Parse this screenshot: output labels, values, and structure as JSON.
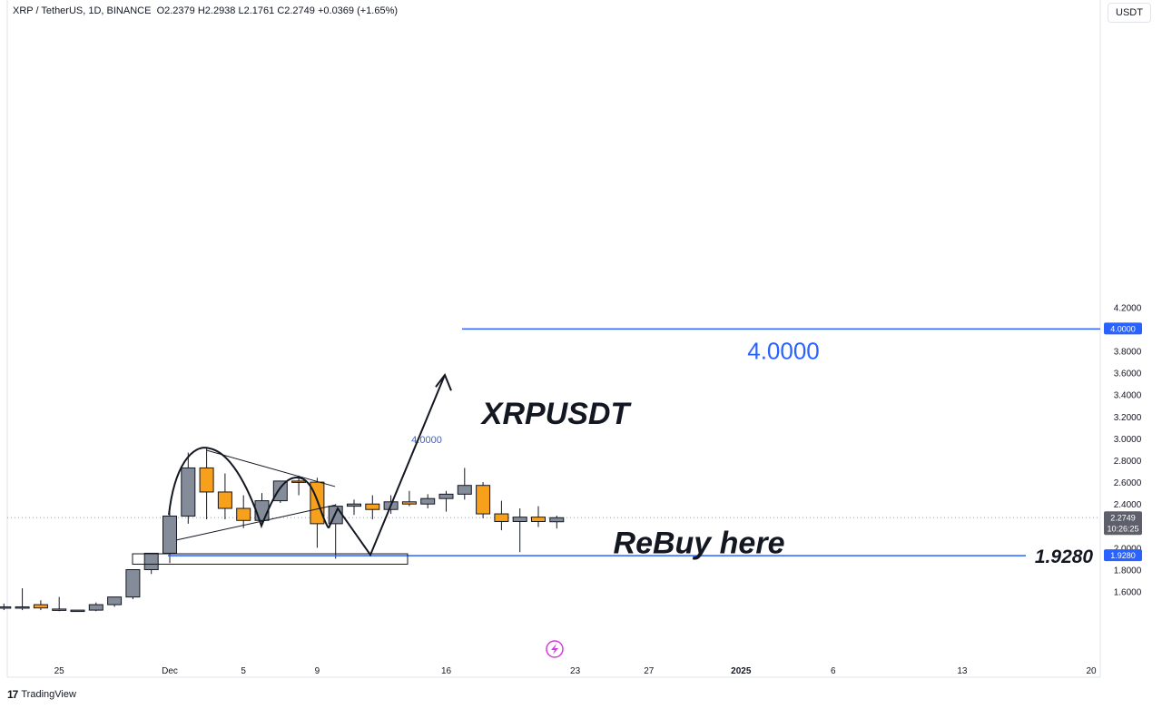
{
  "header": {
    "symbol": "XRP / TetherUS, 1D, BINANCE",
    "open": "O2.2379",
    "high": "H2.2938",
    "low": "L2.1761",
    "close": "C2.2749",
    "change": "+0.0369 (+1.65%)"
  },
  "currency": "USDT",
  "brand": {
    "logo": "17",
    "name": "TradingView"
  },
  "price_tag": {
    "value": "2.2749",
    "countdown": "10:26:25"
  },
  "annotations": {
    "title": "XRPUSDT",
    "rebuy": "ReBuy here",
    "target_big": "4.0000",
    "target_small": "4.0000",
    "support_label": "1.9280"
  },
  "colors": {
    "up": "#858c99",
    "down": "#f7a01c",
    "line": "#2962ff",
    "text": "#131722"
  },
  "chart_data": {
    "type": "candlestick",
    "ylim": [
      1.42,
      4.36
    ],
    "y_ticks": [
      1.6,
      1.8,
      2.0,
      2.2,
      2.4,
      2.6,
      2.8,
      3.0,
      3.2,
      3.4,
      3.6,
      3.8,
      4.0,
      4.2
    ],
    "x_tick_labels": [
      "25",
      "Dec",
      "5",
      "9",
      "16",
      "23",
      "27",
      "2025",
      "6",
      "13",
      "20"
    ],
    "x_tick_days": [
      -6,
      0,
      4,
      8,
      15,
      22,
      26,
      31,
      36,
      43,
      50
    ],
    "candles": [
      {
        "day": -9,
        "o": 1.455,
        "h": 1.49,
        "l": 1.43,
        "c": 1.46
      },
      {
        "day": -8,
        "o": 1.46,
        "h": 1.63,
        "l": 1.43,
        "c": 1.46
      },
      {
        "day": -7,
        "o": 1.48,
        "h": 1.52,
        "l": 1.43,
        "c": 1.45
      },
      {
        "day": -6,
        "o": 1.44,
        "h": 1.55,
        "l": 1.42,
        "c": 1.43
      },
      {
        "day": -5,
        "o": 1.43,
        "h": 1.43,
        "l": 1.42,
        "c": 1.43
      },
      {
        "day": -4,
        "o": 1.43,
        "h": 1.5,
        "l": 1.42,
        "c": 1.48
      },
      {
        "day": -3,
        "o": 1.48,
        "h": 1.55,
        "l": 1.46,
        "c": 1.55
      },
      {
        "day": -2,
        "o": 1.55,
        "h": 1.8,
        "l": 1.53,
        "c": 1.8
      },
      {
        "day": -1,
        "o": 1.8,
        "h": 1.95,
        "l": 1.76,
        "c": 1.95
      },
      {
        "day": 0,
        "o": 1.95,
        "h": 2.37,
        "l": 1.86,
        "c": 2.29
      },
      {
        "day": 1,
        "o": 2.29,
        "h": 2.87,
        "l": 2.22,
        "c": 2.73
      },
      {
        "day": 2,
        "o": 2.73,
        "h": 2.91,
        "l": 2.26,
        "c": 2.51
      },
      {
        "day": 3,
        "o": 2.51,
        "h": 2.68,
        "l": 2.26,
        "c": 2.36
      },
      {
        "day": 4,
        "o": 2.36,
        "h": 2.48,
        "l": 2.18,
        "c": 2.25
      },
      {
        "day": 5,
        "o": 2.25,
        "h": 2.5,
        "l": 2.23,
        "c": 2.43
      },
      {
        "day": 6,
        "o": 2.43,
        "h": 2.61,
        "l": 2.41,
        "c": 2.61
      },
      {
        "day": 7,
        "o": 2.61,
        "h": 2.66,
        "l": 2.48,
        "c": 2.6
      },
      {
        "day": 8,
        "o": 2.6,
        "h": 2.64,
        "l": 2.0,
        "c": 2.22
      },
      {
        "day": 9,
        "o": 2.22,
        "h": 2.4,
        "l": 1.9,
        "c": 2.38
      },
      {
        "day": 10,
        "o": 2.38,
        "h": 2.44,
        "l": 2.3,
        "c": 2.4
      },
      {
        "day": 11,
        "o": 2.4,
        "h": 2.48,
        "l": 2.26,
        "c": 2.35
      },
      {
        "day": 12,
        "o": 2.35,
        "h": 2.48,
        "l": 2.31,
        "c": 2.42
      },
      {
        "day": 13,
        "o": 2.42,
        "h": 2.52,
        "l": 2.38,
        "c": 2.4
      },
      {
        "day": 14,
        "o": 2.4,
        "h": 2.49,
        "l": 2.36,
        "c": 2.45
      },
      {
        "day": 15,
        "o": 2.45,
        "h": 2.52,
        "l": 2.33,
        "c": 2.49
      },
      {
        "day": 16,
        "o": 2.49,
        "h": 2.73,
        "l": 2.44,
        "c": 2.57
      },
      {
        "day": 17,
        "o": 2.57,
        "h": 2.6,
        "l": 2.27,
        "c": 2.31
      },
      {
        "day": 18,
        "o": 2.31,
        "h": 2.43,
        "l": 2.16,
        "c": 2.24
      },
      {
        "day": 19,
        "o": 2.24,
        "h": 2.36,
        "l": 1.96,
        "c": 2.28
      },
      {
        "day": 20,
        "o": 2.28,
        "h": 2.38,
        "l": 2.19,
        "c": 2.24
      },
      {
        "day": 21,
        "o": 2.2379,
        "h": 2.2938,
        "l": 2.1761,
        "c": 2.2749
      }
    ]
  }
}
